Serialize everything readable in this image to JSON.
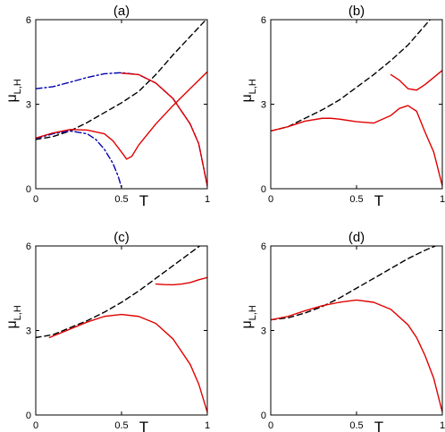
{
  "chart_data": [
    {
      "type": "line",
      "title": "(a)",
      "xlabel": "T",
      "ylabel": "μ",
      "ylabel_sub": "L,H",
      "xlim": [
        0,
        1
      ],
      "ylim": [
        0,
        6
      ],
      "xticks": [
        0,
        0.5,
        1
      ],
      "xtick_labels": [
        "0",
        "0.5",
        "1"
      ],
      "yticks": [
        0,
        3,
        6
      ],
      "ytick_labels": [
        "0",
        "3",
        "6"
      ],
      "grid": false,
      "series": [
        {
          "color": "#000000",
          "style": "dashed",
          "x": [
            0,
            0.1,
            0.2,
            0.3,
            0.4,
            0.5,
            0.6,
            0.7,
            0.8,
            0.9,
            1.0
          ],
          "y": [
            1.75,
            1.85,
            2.05,
            2.35,
            2.7,
            3.05,
            3.45,
            4.05,
            4.75,
            5.4,
            6.05
          ]
        },
        {
          "color": "#0000b0",
          "style": "dashdot",
          "x": [
            0,
            0.1,
            0.2,
            0.3,
            0.4,
            0.5,
            0.6,
            0.7,
            0.8,
            0.9,
            0.95,
            1.0
          ],
          "y": [
            3.55,
            3.62,
            3.78,
            3.95,
            4.08,
            4.12,
            4.05,
            3.75,
            3.2,
            2.3,
            1.6,
            0.1
          ]
        },
        {
          "color": "#0000b0",
          "style": "dashdot",
          "x": [
            0,
            0.1,
            0.2,
            0.3,
            0.35,
            0.4,
            0.45,
            0.48,
            0.5
          ],
          "y": [
            1.78,
            1.95,
            2.05,
            1.95,
            1.75,
            1.4,
            0.9,
            0.45,
            0.05
          ]
        },
        {
          "color": "#e00000",
          "style": "solid",
          "x": [
            0,
            0.1,
            0.2,
            0.3,
            0.4,
            0.45,
            0.5,
            0.53,
            0.56,
            0.6,
            0.7,
            0.8,
            0.9,
            1.0
          ],
          "y": [
            1.8,
            1.98,
            2.1,
            2.08,
            1.95,
            1.7,
            1.3,
            1.05,
            1.15,
            1.55,
            2.3,
            2.95,
            3.55,
            4.15
          ]
        },
        {
          "color": "#e00000",
          "style": "solid",
          "x": [
            0.5,
            0.6,
            0.7,
            0.8,
            0.9,
            0.95,
            1.0
          ],
          "y": [
            4.1,
            4.05,
            3.75,
            3.2,
            2.3,
            1.6,
            0.1
          ]
        }
      ]
    },
    {
      "type": "line",
      "title": "(b)",
      "xlabel": "T",
      "ylabel": "μ",
      "ylabel_sub": "L,H",
      "xlim": [
        0,
        1
      ],
      "ylim": [
        0,
        6
      ],
      "xticks": [
        0,
        0.5,
        1
      ],
      "xtick_labels": [
        "0",
        "0.5",
        "1"
      ],
      "yticks": [
        0,
        3,
        6
      ],
      "ytick_labels": [
        "0",
        "3",
        "6"
      ],
      "grid": false,
      "series": [
        {
          "color": "#000000",
          "style": "dashed",
          "x": [
            0,
            0.1,
            0.2,
            0.3,
            0.4,
            0.5,
            0.6,
            0.7,
            0.8,
            0.9,
            1.0
          ],
          "y": [
            2.05,
            2.2,
            2.5,
            2.8,
            3.15,
            3.6,
            4.05,
            4.55,
            5.1,
            5.8,
            6.5
          ]
        },
        {
          "color": "#e00000",
          "style": "solid",
          "x": [
            0,
            0.1,
            0.2,
            0.3,
            0.35,
            0.4,
            0.5,
            0.6,
            0.7,
            0.75,
            0.8,
            0.85,
            0.9,
            0.95,
            1.0
          ],
          "y": [
            2.05,
            2.2,
            2.4,
            2.5,
            2.5,
            2.47,
            2.38,
            2.33,
            2.6,
            2.85,
            2.95,
            2.75,
            2.0,
            1.3,
            0.1
          ]
        },
        {
          "color": "#e00000",
          "style": "solid",
          "x": [
            0.7,
            0.75,
            0.8,
            0.85,
            0.9,
            0.95,
            1.0
          ],
          "y": [
            4.05,
            3.85,
            3.55,
            3.5,
            3.7,
            3.95,
            4.2
          ]
        }
      ]
    },
    {
      "type": "line",
      "title": "(c)",
      "xlabel": "T",
      "ylabel": "μ",
      "ylabel_sub": "L,H",
      "xlim": [
        0,
        1
      ],
      "ylim": [
        0,
        6
      ],
      "xticks": [
        0,
        0.5,
        1
      ],
      "xtick_labels": [
        "0",
        "0.5",
        "1"
      ],
      "yticks": [
        0,
        3,
        6
      ],
      "ytick_labels": [
        "0",
        "3",
        "6"
      ],
      "grid": false,
      "series": [
        {
          "color": "#000000",
          "style": "dashed",
          "x": [
            0,
            0.1,
            0.2,
            0.3,
            0.4,
            0.5,
            0.6,
            0.7,
            0.8,
            0.9,
            1.0
          ],
          "y": [
            2.75,
            2.85,
            3.1,
            3.35,
            3.65,
            4.0,
            4.4,
            4.85,
            5.3,
            5.75,
            6.2
          ]
        },
        {
          "color": "#e00000",
          "style": "solid",
          "x": [
            0.08,
            0.2,
            0.3,
            0.4,
            0.5,
            0.6,
            0.7,
            0.8,
            0.9,
            0.95,
            1.0
          ],
          "y": [
            2.75,
            3.05,
            3.3,
            3.5,
            3.57,
            3.5,
            3.25,
            2.7,
            1.8,
            1.1,
            0.1
          ]
        },
        {
          "color": "#e00000",
          "style": "solid",
          "x": [
            0.7,
            0.75,
            0.8,
            0.85,
            0.9,
            0.95,
            1.0
          ],
          "y": [
            4.65,
            4.63,
            4.62,
            4.65,
            4.7,
            4.8,
            4.88
          ]
        }
      ]
    },
    {
      "type": "line",
      "title": "(d)",
      "xlabel": "T",
      "ylabel": "μ",
      "ylabel_sub": "L,H",
      "xlim": [
        0,
        1
      ],
      "ylim": [
        0,
        6
      ],
      "xticks": [
        0,
        0.5,
        1
      ],
      "xtick_labels": [
        "0",
        "0.5",
        "1"
      ],
      "yticks": [
        0,
        3,
        6
      ],
      "ytick_labels": [
        "0",
        "3",
        "6"
      ],
      "grid": false,
      "series": [
        {
          "color": "#000000",
          "style": "dashed",
          "x": [
            0,
            0.1,
            0.2,
            0.3,
            0.4,
            0.5,
            0.6,
            0.7,
            0.8,
            0.9,
            1.0
          ],
          "y": [
            3.38,
            3.45,
            3.62,
            3.85,
            4.15,
            4.5,
            4.85,
            5.2,
            5.55,
            5.85,
            6.1
          ]
        },
        {
          "color": "#e00000",
          "style": "solid",
          "x": [
            0,
            0.1,
            0.2,
            0.3,
            0.4,
            0.5,
            0.6,
            0.7,
            0.8,
            0.85,
            0.9,
            0.95,
            1.0
          ],
          "y": [
            3.38,
            3.5,
            3.7,
            3.88,
            4.0,
            4.08,
            4.0,
            3.75,
            3.2,
            2.75,
            2.1,
            1.3,
            0.1
          ]
        }
      ]
    }
  ]
}
